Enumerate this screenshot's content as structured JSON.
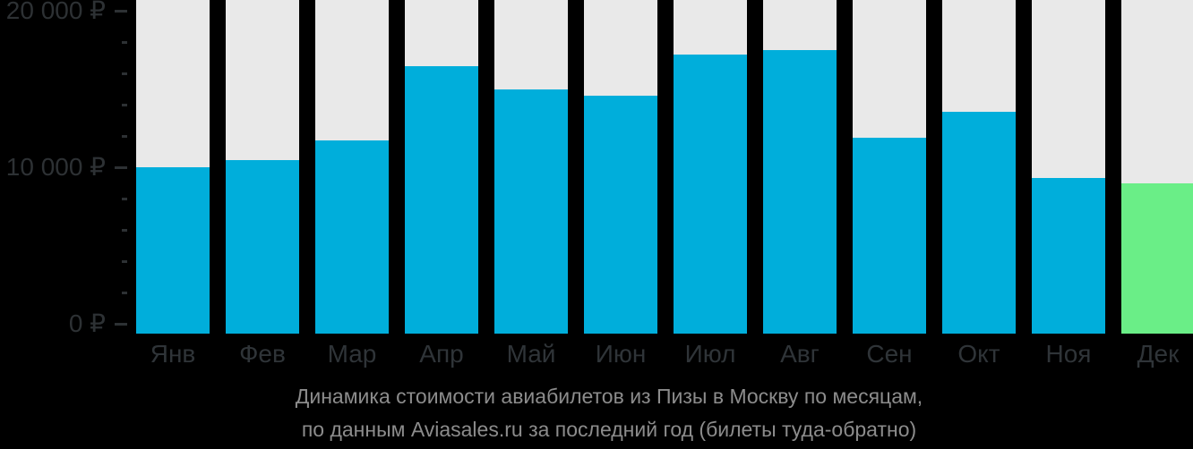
{
  "chart_data": {
    "type": "bar",
    "title_line1": "Динамика стоимости авиабилетов из Пизы в Москву по месяцам,",
    "title_line2": "по данным Aviasales.ru за последний год (билеты туда-обратно)",
    "categories": [
      "Янв",
      "Фев",
      "Мар",
      "Апр",
      "Май",
      "Июн",
      "Июл",
      "Авг",
      "Сен",
      "Окт",
      "Ноя",
      "Дек"
    ],
    "values": [
      10000,
      10450,
      11700,
      16450,
      14950,
      14550,
      17200,
      17500,
      11900,
      13550,
      9300,
      9000
    ],
    "unit": "₽",
    "ylim": [
      0,
      20000
    ],
    "yticks": [
      {
        "label": "20 000 ₽",
        "value": 20000
      },
      {
        "label": "10 000 ₽",
        "value": 10000
      },
      {
        "label": "0 ₽",
        "value": 0
      }
    ],
    "minor_ticks_per_interval": 4,
    "highlight_index": 11,
    "legend": "none",
    "grid": "off"
  },
  "colors": {
    "background": "#000000",
    "column_bg": "#e9e9e9",
    "bar": "#00aedb",
    "bar_highlight": "#6aee87",
    "axis": "#2d3134",
    "title": "#8c8c8c"
  }
}
